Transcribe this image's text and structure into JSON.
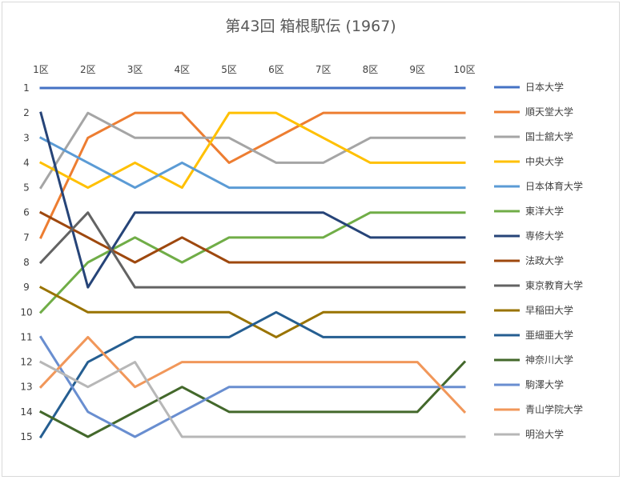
{
  "chart_data": {
    "type": "line",
    "title": "第43回 箱根駅伝 (1967)",
    "categories": [
      "1区",
      "2区",
      "3区",
      "4区",
      "5区",
      "6区",
      "7区",
      "8区",
      "9区",
      "10区"
    ],
    "y_ticks": [
      "1",
      "2",
      "3",
      "4",
      "5",
      "6",
      "7",
      "8",
      "9",
      "10",
      "11",
      "12",
      "13",
      "14",
      "15"
    ],
    "ylim": [
      1,
      15
    ],
    "y_inverted": true,
    "x_axis_position": "top",
    "legend_position": "right",
    "grid": false,
    "series": [
      {
        "name": "日本大学",
        "color": "#4472C4",
        "values": [
          1,
          1,
          1,
          1,
          1,
          1,
          1,
          1,
          1,
          1
        ]
      },
      {
        "name": "順天堂大学",
        "color": "#ED7D31",
        "values": [
          7,
          3,
          2,
          2,
          4,
          3,
          2,
          2,
          2,
          2
        ]
      },
      {
        "name": "国士舘大学",
        "color": "#A5A5A5",
        "values": [
          5,
          2,
          3,
          3,
          3,
          4,
          4,
          3,
          3,
          3
        ]
      },
      {
        "name": "中央大学",
        "color": "#FFC000",
        "values": [
          4,
          5,
          4,
          5,
          2,
          2,
          3,
          4,
          4,
          4
        ]
      },
      {
        "name": "日本体育大学",
        "color": "#5B9BD5",
        "values": [
          3,
          4,
          5,
          4,
          5,
          5,
          5,
          5,
          5,
          5
        ]
      },
      {
        "name": "東洋大学",
        "color": "#70AD47",
        "values": [
          10,
          8,
          7,
          8,
          7,
          7,
          7,
          6,
          6,
          6
        ]
      },
      {
        "name": "専修大学",
        "color": "#264478",
        "values": [
          2,
          9,
          6,
          6,
          6,
          6,
          6,
          7,
          7,
          7
        ]
      },
      {
        "name": "法政大学",
        "color": "#9E480E",
        "values": [
          6,
          7,
          8,
          7,
          8,
          8,
          8,
          8,
          8,
          8
        ]
      },
      {
        "name": "東京教育大学",
        "color": "#636363",
        "values": [
          8,
          6,
          9,
          9,
          9,
          9,
          9,
          9,
          9,
          9
        ]
      },
      {
        "name": "早稲田大学",
        "color": "#997300",
        "values": [
          9,
          10,
          10,
          10,
          10,
          11,
          10,
          10,
          10,
          10
        ]
      },
      {
        "name": "亜細亜大学",
        "color": "#255E91",
        "values": [
          15,
          12,
          11,
          11,
          11,
          10,
          11,
          11,
          11,
          11
        ]
      },
      {
        "name": "神奈川大学",
        "color": "#43682B",
        "values": [
          14,
          15,
          14,
          13,
          14,
          14,
          14,
          14,
          14,
          12
        ]
      },
      {
        "name": "駒澤大学",
        "color": "#698ED0",
        "values": [
          11,
          14,
          15,
          14,
          13,
          13,
          13,
          13,
          13,
          13
        ]
      },
      {
        "name": "青山学院大学",
        "color": "#F1975A",
        "values": [
          13,
          11,
          13,
          12,
          12,
          12,
          12,
          12,
          12,
          14
        ]
      },
      {
        "name": "明治大学",
        "color": "#B7B7B7",
        "values": [
          12,
          13,
          12,
          15,
          15,
          15,
          15,
          15,
          15,
          15
        ]
      }
    ]
  }
}
